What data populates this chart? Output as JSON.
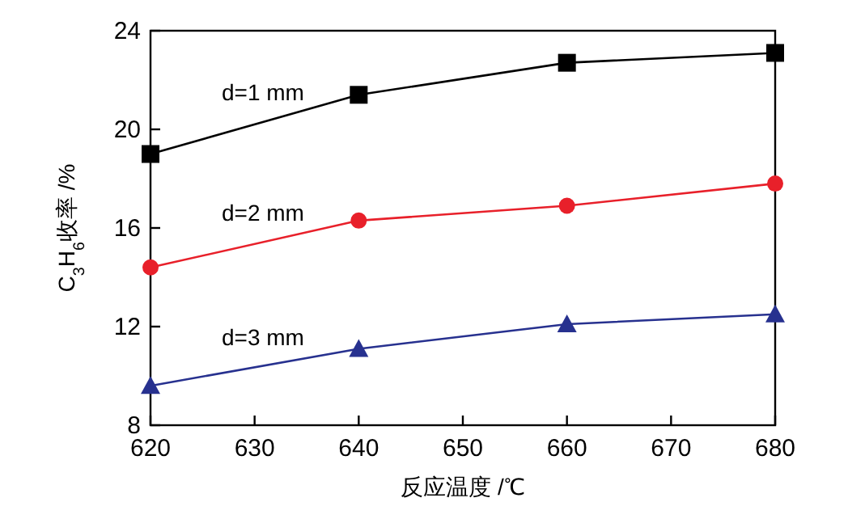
{
  "chart_data": {
    "type": "line",
    "xlabel": "反应温度 /℃",
    "ylabel": "C$_{3}$H$_{6}$收率 /%",
    "x": [
      620,
      640,
      660,
      680
    ],
    "series": [
      {
        "name": "d=1 mm",
        "color": "#000000",
        "marker": "square",
        "values": [
          19.0,
          21.4,
          22.7,
          23.1
        ]
      },
      {
        "name": "d=2 mm",
        "color": "#e8202a",
        "marker": "circle",
        "values": [
          14.4,
          16.3,
          16.9,
          17.8
        ]
      },
      {
        "name": "d=3 mm",
        "color": "#27318f",
        "marker": "triangle",
        "values": [
          9.6,
          11.1,
          12.1,
          12.5
        ]
      }
    ],
    "xlim": [
      620,
      680
    ],
    "xticks": [
      620,
      630,
      640,
      650,
      660,
      670,
      680
    ],
    "ylim": [
      8,
      24
    ],
    "yticks": [
      8,
      12,
      16,
      20,
      24
    ],
    "grid": false,
    "line_style": "solid"
  }
}
